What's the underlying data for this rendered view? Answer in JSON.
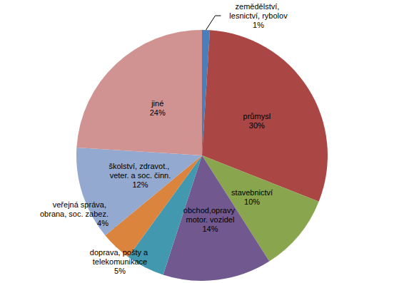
{
  "chart_data": {
    "type": "pie",
    "categories": [
      "zemědělství, lesnictví, rybolov",
      "průmysl",
      "stavebnictví",
      "obchod,opravy motor. vozidel",
      "doprava, pošty a telekomunikace",
      "veřejná správa, obrana, soc. zabez.",
      "školství, zdravot., veter. a soc. činn.",
      "jiné"
    ],
    "values": [
      1,
      30,
      10,
      14,
      5,
      4,
      12,
      24
    ],
    "value_labels": [
      "1%",
      "30%",
      "10%",
      "14%",
      "5%",
      "4%",
      "12%",
      "24%"
    ],
    "colors": [
      "#4a7ebb",
      "#aa4643",
      "#89a54e",
      "#71588f",
      "#4198af",
      "#db843d",
      "#93a9cf",
      "#d19392"
    ],
    "data_labels": true
  }
}
